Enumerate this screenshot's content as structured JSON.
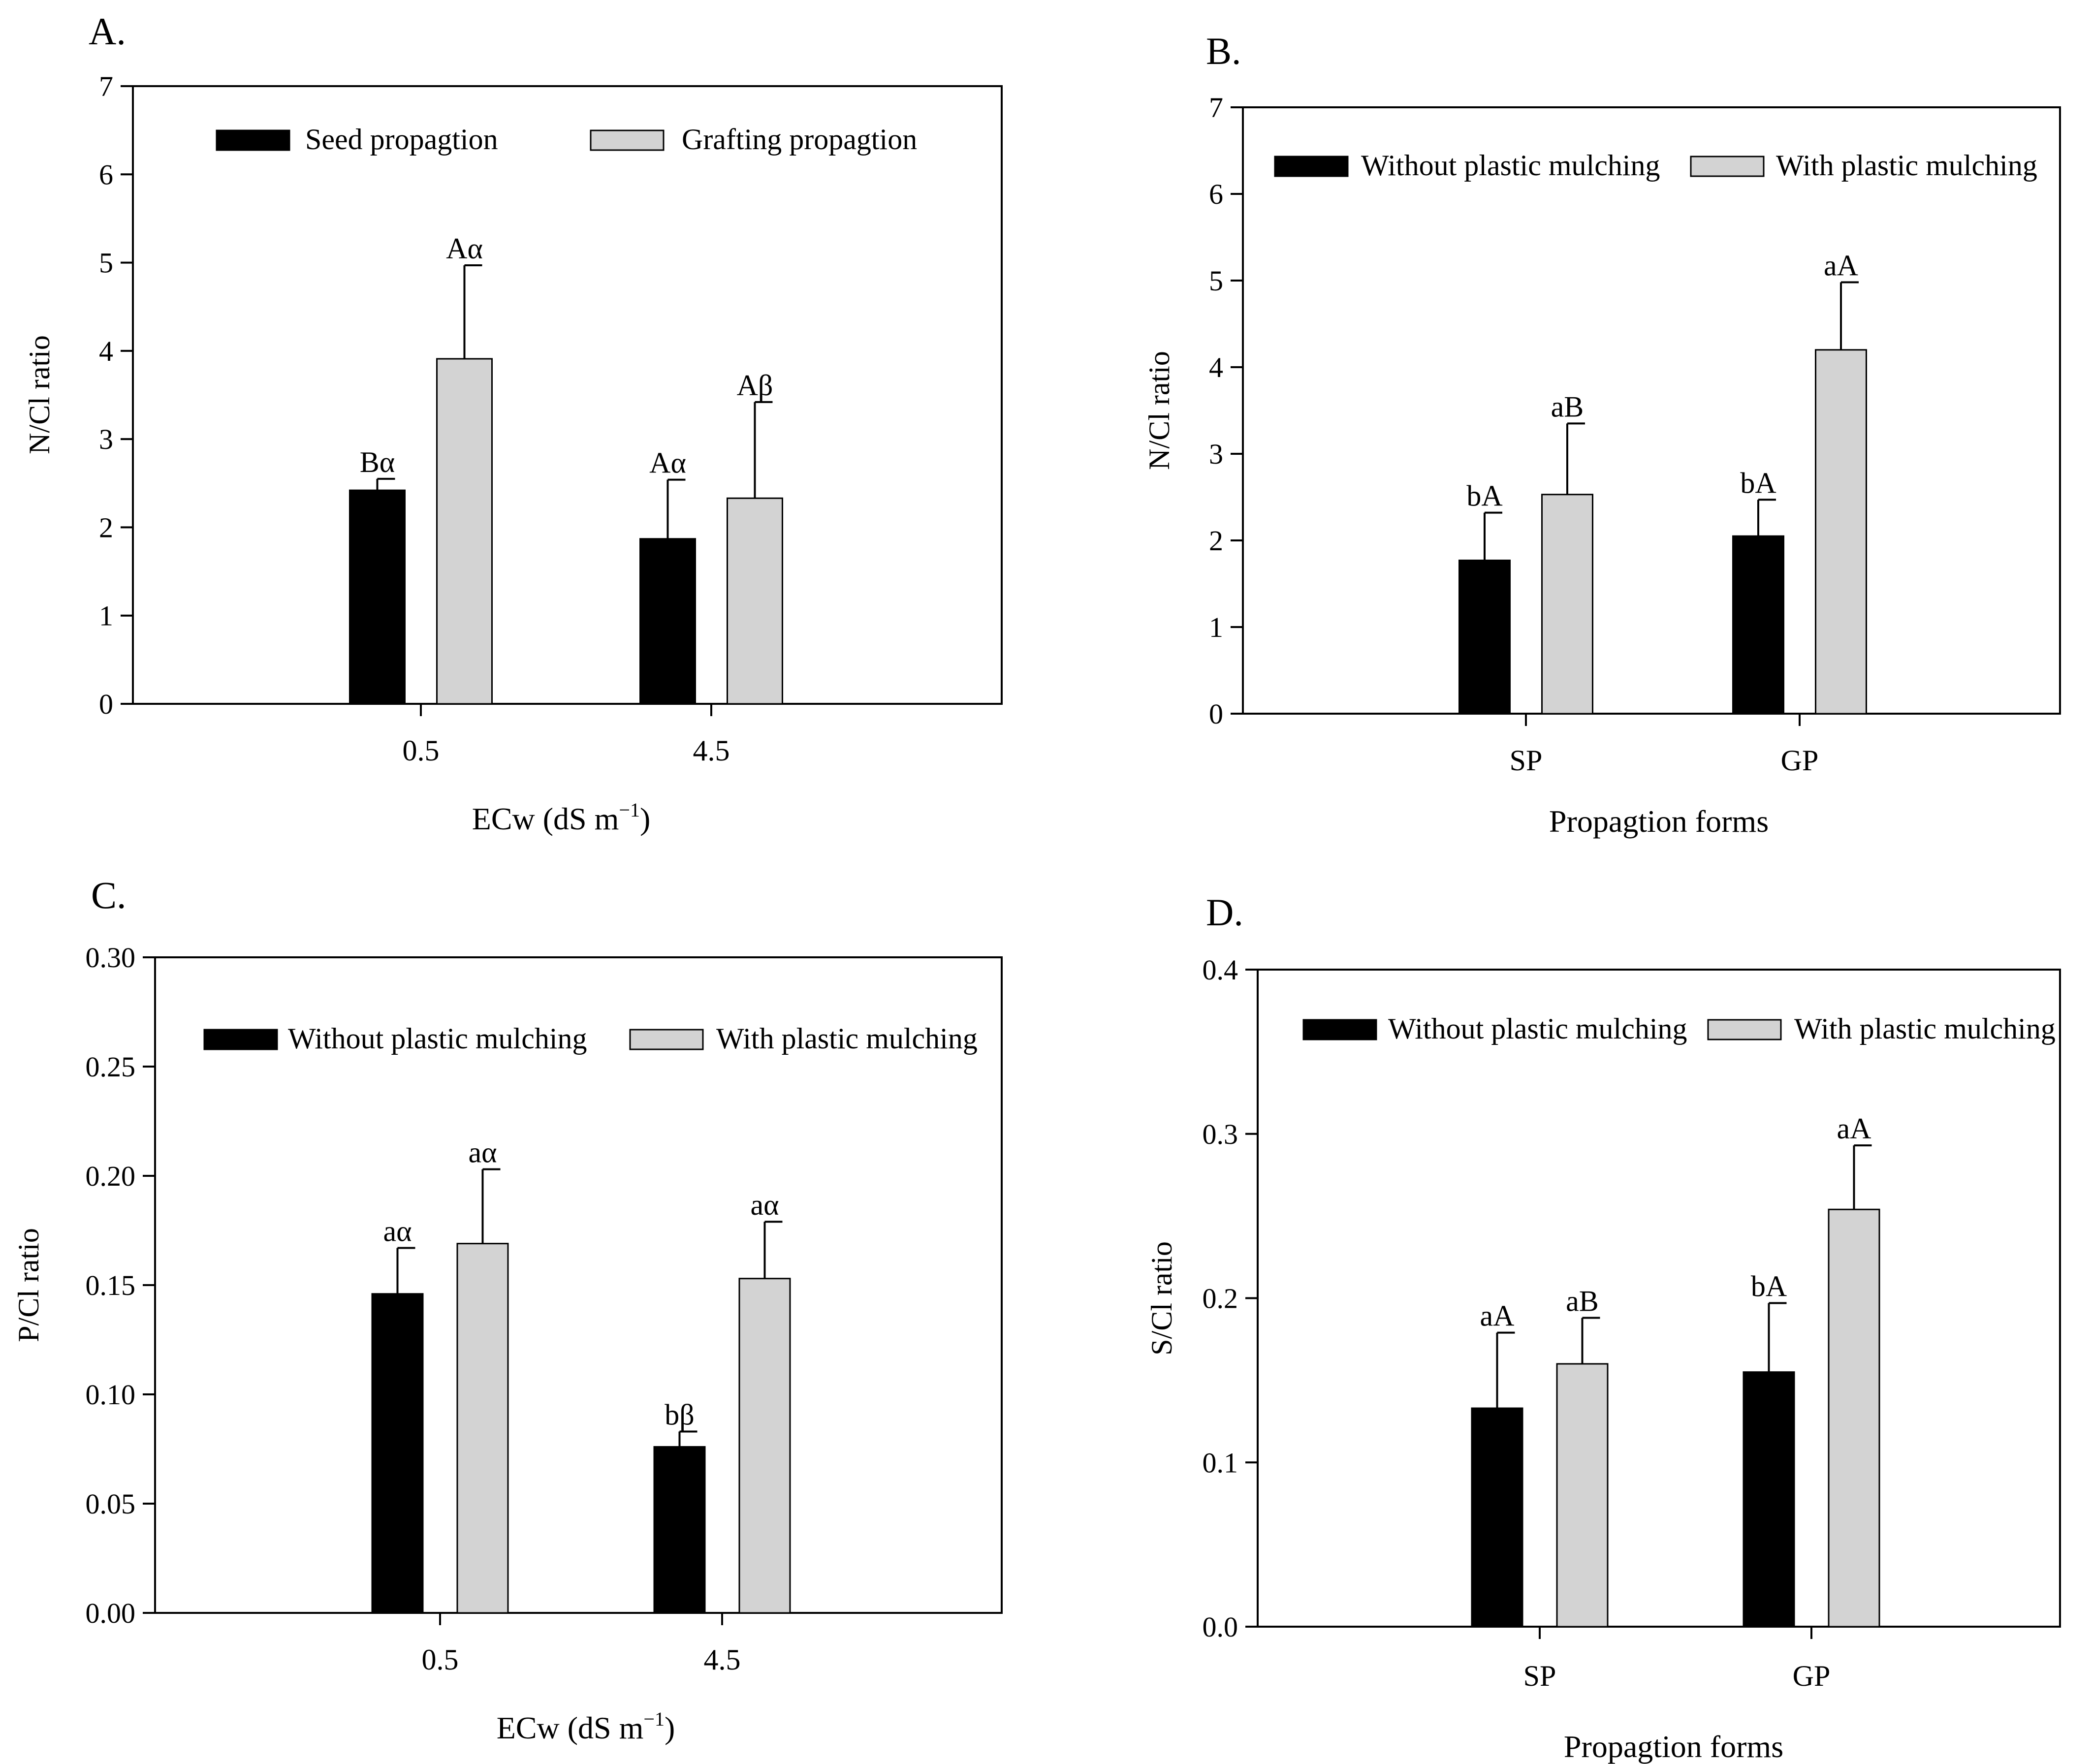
{
  "colors": {
    "series_dark": "#000000",
    "series_light": "#d3d3d3",
    "axis": "#000000",
    "background": "#ffffff"
  },
  "chart_data": [
    {
      "panel": "A.",
      "type": "bar",
      "categories": [
        "0.5",
        "4.5"
      ],
      "series": [
        {
          "name": "Seed propagtion",
          "values": [
            2.42,
            1.87
          ],
          "errors": [
            0.13,
            0.67
          ],
          "labels": [
            "Bα",
            "Aα"
          ]
        },
        {
          "name": "Grafting propagtion",
          "values": [
            3.91,
            2.33
          ],
          "errors": [
            1.06,
            1.09
          ],
          "labels": [
            "Aα",
            "Aβ"
          ]
        }
      ],
      "xlabel": "ECw (dS m",
      "xlabel_sup": "−1",
      "xlabel_tail": ")",
      "ylabel": "N/Cl ratio",
      "ylim": [
        0,
        7
      ],
      "yticks": [
        "0",
        "1",
        "2",
        "3",
        "4",
        "5",
        "6",
        "7"
      ],
      "legend": "top"
    },
    {
      "panel": "B.",
      "type": "bar",
      "categories": [
        "SP",
        "GP"
      ],
      "series": [
        {
          "name": "Without plastic mulching",
          "values": [
            1.77,
            2.05
          ],
          "errors": [
            0.55,
            0.42
          ],
          "labels": [
            "bA",
            "bA"
          ]
        },
        {
          "name": "With plastic mulching",
          "values": [
            2.53,
            4.2
          ],
          "errors": [
            0.82,
            0.78
          ],
          "labels": [
            "aB",
            "aA"
          ]
        }
      ],
      "xlabel": "Propagtion forms",
      "ylabel": "N/Cl ratio",
      "ylim": [
        0,
        7
      ],
      "yticks": [
        "0",
        "1",
        "2",
        "3",
        "4",
        "5",
        "6",
        "7"
      ],
      "legend": "top"
    },
    {
      "panel": "C.",
      "type": "bar",
      "categories": [
        "0.5",
        "4.5"
      ],
      "series": [
        {
          "name": "Without plastic mulching",
          "values": [
            0.146,
            0.076
          ],
          "errors": [
            0.021,
            0.007
          ],
          "labels": [
            "aα",
            "bβ"
          ]
        },
        {
          "name": "With plastic mulching",
          "values": [
            0.169,
            0.153
          ],
          "errors": [
            0.034,
            0.026
          ],
          "labels": [
            "aα",
            "aα"
          ]
        }
      ],
      "xlabel": "ECw (dS m",
      "xlabel_sup": "−1",
      "xlabel_tail": ")",
      "ylabel": "P/Cl ratio",
      "ylim": [
        0,
        0.3
      ],
      "yticks": [
        "0.00",
        "0.05",
        "0.10",
        "0.15",
        "0.20",
        "0.25",
        "0.30"
      ],
      "legend": "top"
    },
    {
      "panel": "D.",
      "type": "bar",
      "categories": [
        "SP",
        "GP"
      ],
      "series": [
        {
          "name": "Without plastic mulching",
          "values": [
            0.133,
            0.155
          ],
          "errors": [
            0.046,
            0.042
          ],
          "labels": [
            "aA",
            "bA"
          ]
        },
        {
          "name": "With plastic mulching",
          "values": [
            0.16,
            0.254
          ],
          "errors": [
            0.028,
            0.039
          ],
          "labels": [
            "aB",
            "aA"
          ]
        }
      ],
      "xlabel": "Propagtion forms",
      "ylabel": "S/Cl ratio",
      "ylim": [
        0,
        0.4
      ],
      "yticks": [
        "0.0",
        "0.1",
        "0.2",
        "0.3",
        "0.4"
      ],
      "legend": "top"
    }
  ]
}
